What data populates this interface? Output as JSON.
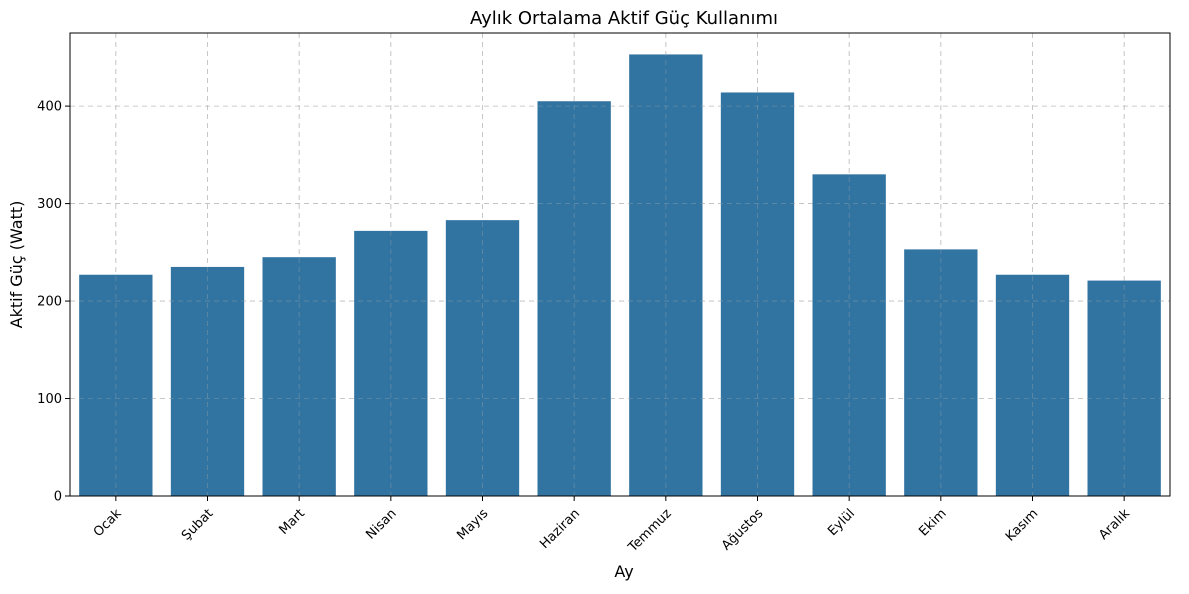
{
  "chart_data": {
    "type": "bar",
    "title": "Aylık Ortalama Aktif Güç Kullanımı",
    "xlabel": "Ay",
    "ylabel": "Aktif Güç (Watt)",
    "categories": [
      "Ocak",
      "Şubat",
      "Mart",
      "Nisan",
      "Mayıs",
      "Haziran",
      "Temmuz",
      "Ağustos",
      "Eylül",
      "Ekim",
      "Kasım",
      "Aralık"
    ],
    "values": [
      227,
      235,
      245,
      272,
      283,
      405,
      453,
      414,
      330,
      253,
      227,
      221
    ],
    "ylim": [
      0,
      475
    ],
    "yticks": [
      0,
      100,
      200,
      300,
      400
    ],
    "bar_color": "#3274a1",
    "grid": true,
    "legend": "none"
  }
}
